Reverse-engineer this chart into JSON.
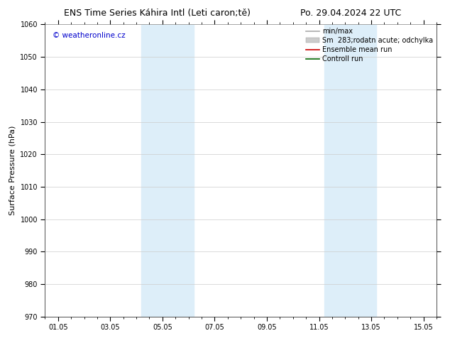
{
  "title": "ENS Time Series Káhira Intl (Leti caron;tě)",
  "title_right": "Po. 29.04.2024 22 UTC",
  "ylabel": "Surface Pressure (hPa)",
  "watermark": "© weatheronline.cz",
  "watermark_color": "#0000cc",
  "ylim": [
    970,
    1060
  ],
  "yticks": [
    970,
    980,
    990,
    1000,
    1010,
    1020,
    1030,
    1040,
    1050,
    1060
  ],
  "xtick_labels": [
    "01.05",
    "03.05",
    "05.05",
    "07.05",
    "09.05",
    "11.05",
    "13.05",
    "15.05"
  ],
  "xtick_positions": [
    0,
    2,
    4,
    6,
    8,
    10,
    12,
    14
  ],
  "xlim": [
    -0.5,
    14.5
  ],
  "shaded_bands": [
    {
      "x_start": 3.2,
      "x_end": 5.2,
      "color": "#ddeef9"
    },
    {
      "x_start": 10.2,
      "x_end": 12.2,
      "color": "#ddeef9"
    }
  ],
  "legend_entries": [
    {
      "label": "min/max",
      "color": "#aaaaaa",
      "lw": 1.2,
      "type": "line"
    },
    {
      "label": "Sm  283;rodatn acute; odchylka",
      "color": "#cccccc",
      "lw": 7,
      "type": "patch"
    },
    {
      "label": "Ensemble mean run",
      "color": "#cc0000",
      "lw": 1.2,
      "type": "line"
    },
    {
      "label": "Controll run",
      "color": "#006600",
      "lw": 1.2,
      "type": "line"
    }
  ],
  "bg_color": "#ffffff",
  "grid_color": "#cccccc",
  "title_fontsize": 9,
  "tick_fontsize": 7,
  "ylabel_fontsize": 8,
  "legend_fontsize": 7,
  "watermark_fontsize": 7.5
}
